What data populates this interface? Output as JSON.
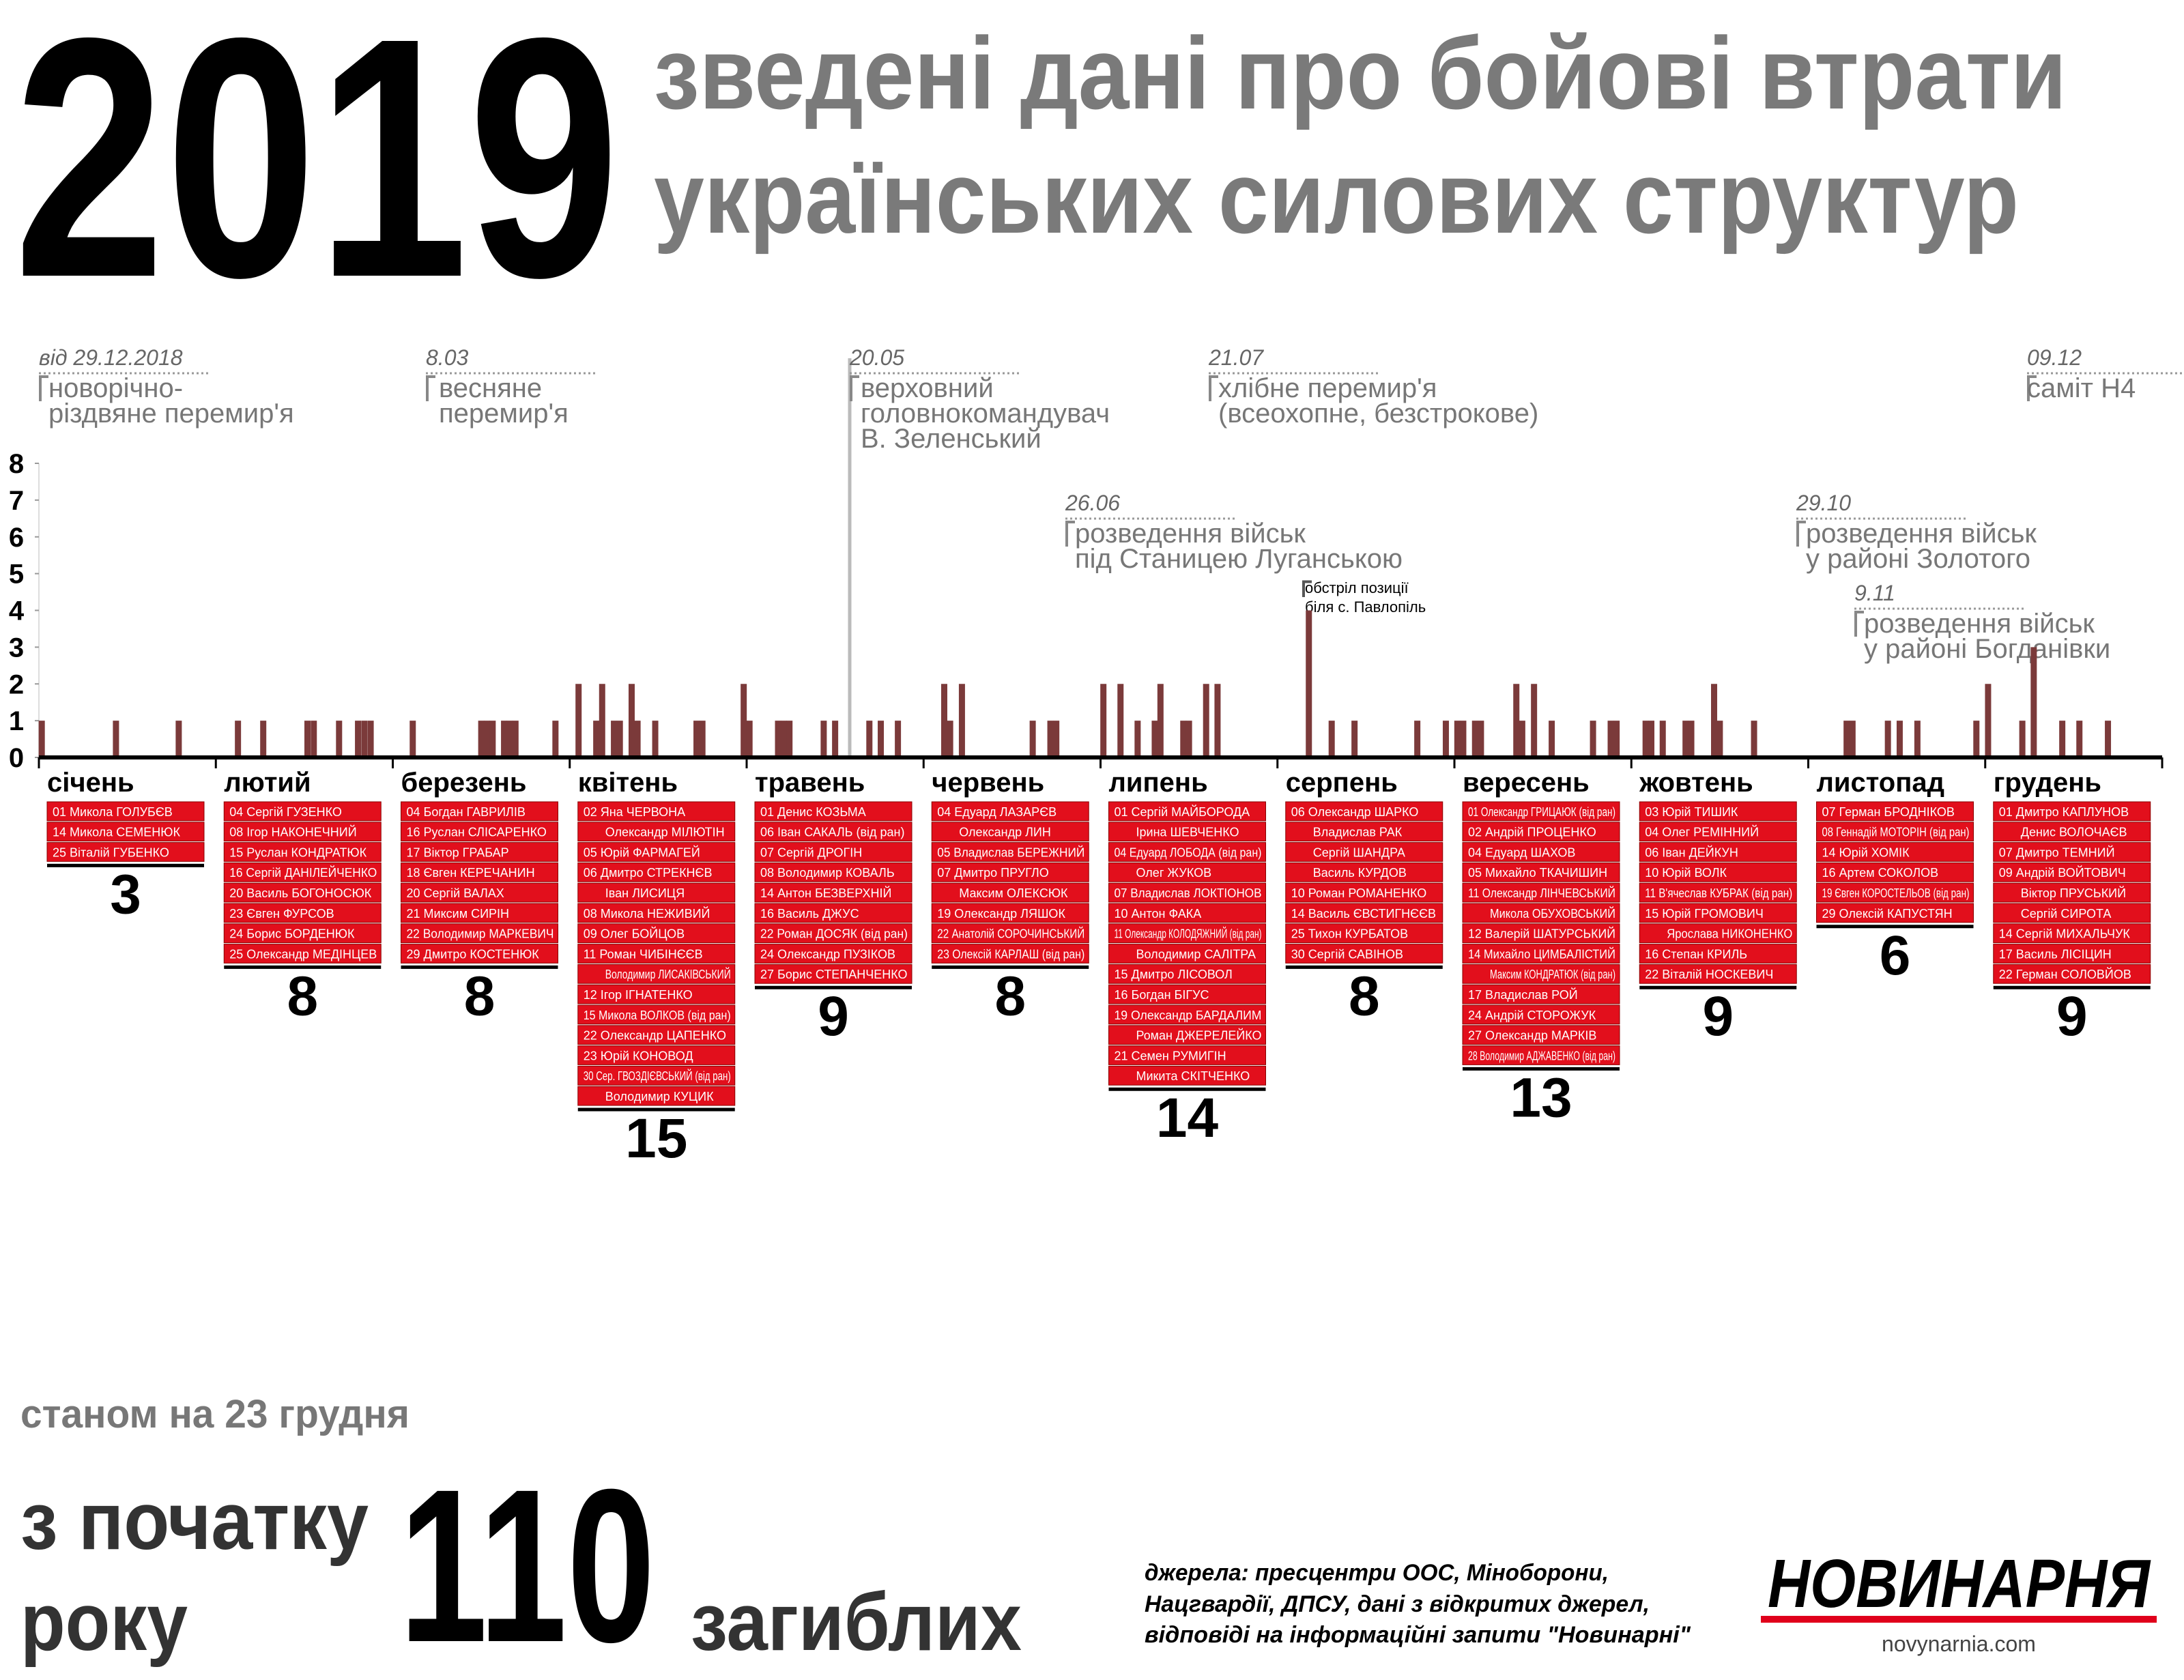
{
  "header": {
    "year": "2019",
    "title_lines": [
      "зведені дані про бойові втрати",
      "українських силових структур"
    ]
  },
  "chart_data": {
    "type": "bar",
    "ylim": [
      0,
      8
    ],
    "yticks": [
      0,
      1,
      2,
      3,
      4,
      5,
      6,
      7,
      8
    ],
    "color": "#7b3a3a",
    "months": [
      {
        "name": "січень",
        "days": [
          1,
          14,
          25
        ],
        "values": [
          1,
          1,
          1
        ],
        "total": 3,
        "names": [
          "01 Микола ГОЛУБЄВ",
          "14 Микола СЕМЕНЮК",
          "25 Віталій ГУБЕНКО"
        ]
      },
      {
        "name": "лютий",
        "days": [
          4,
          8,
          15,
          16,
          20,
          23,
          24,
          25
        ],
        "values": [
          1,
          1,
          1,
          1,
          1,
          1,
          1,
          1
        ],
        "total": 8,
        "names": [
          "04 Сергій ГУЗЕНКО",
          "08 Ігор НАКОНЕЧНИЙ",
          "15 Руслан КОНДРАТЮК",
          "16 Сергій ДАНІЛЕЙЧЕНКО",
          "20 Василь БОГОНОСЮК",
          "23 Євген ФУРСОВ",
          "24 Борис БОРДЕНЮК",
          "25 Олександр МЕДІНЦЕВ"
        ]
      },
      {
        "name": "березень",
        "days": [
          4,
          16,
          17,
          18,
          20,
          21,
          22,
          29
        ],
        "values": [
          1,
          1,
          1,
          1,
          1,
          1,
          1,
          1
        ],
        "total": 8,
        "names": [
          "04 Богдан ГАВРИЛІВ",
          "16 Руслан СЛІСАРЕНКО",
          "17 Віктор ГРАБАР",
          "18 Євген КЕРЕЧАНИН",
          "20 Сергій ВАЛАХ",
          "21 Миксим СИРІН",
          "22 Володимир МАРКЕВИЧ",
          "29 Дмитро КОСТЕНЮК"
        ]
      },
      {
        "name": "квітень",
        "days": [
          2,
          5,
          6,
          8,
          9,
          11,
          12,
          15,
          22,
          23,
          30
        ],
        "values": [
          2,
          1,
          2,
          1,
          1,
          2,
          1,
          1,
          1,
          1,
          2
        ],
        "total": 15,
        "names": [
          "02 Яна ЧЕРВОНА",
          "Олександр МІЛЮТІН",
          "05 Юрій ФАРМАГЕЙ",
          "06 Дмитро СТРЕКНЄВ",
          "Іван ЛИСИЦЯ",
          "08 Микола НЕЖИВИЙ",
          "09 Олег БОЙЦОВ",
          "11 Роман ЧИБІНЄЄВ",
          "Володимир ЛИСАКІВСЬКИЙ",
          "12 Ігор ІГНАТЕНКО",
          "15 Микола ВОЛКОВ (від ран)",
          "22 Олександр ЦАПЕНКО",
          "23 Юрій КОНОВОД",
          "30 Сер. ГВОЗДІЄВСЬКИЙ (від ран)",
          "Володимир КУЦИК"
        ]
      },
      {
        "name": "травень",
        "days": [
          1,
          6,
          7,
          8,
          14,
          16,
          22,
          24,
          27
        ],
        "values": [
          1,
          1,
          1,
          1,
          1,
          1,
          1,
          1,
          1
        ],
        "total": 9,
        "names": [
          "01 Денис КОЗЬМА",
          "06 Іван САКАЛЬ (від ран)",
          "07 Сергій ДРОГІН",
          "08 Володимир КОВАЛЬ",
          "14 Антон БЕЗВЕРХНІЙ",
          "16 Василь ДЖУС",
          "22 Роман ДОСЯК (від ран)",
          "24 Олександр ПУЗІКОВ",
          "27 Борис СТЕПАНЧЕНКО"
        ]
      },
      {
        "name": "червень",
        "days": [
          4,
          5,
          7,
          19,
          22,
          23
        ],
        "values": [
          2,
          1,
          2,
          1,
          1,
          1
        ],
        "total": 8,
        "names": [
          "04 Едуард ЛАЗАРЄВ",
          "Олександр ЛИН",
          "05 Владислав БЕРЕЖНИЙ",
          "07 Дмитро ПРУГЛО",
          "Максим ОЛЕКСЮК",
          "19 Олександр ЛЯШОК",
          "22 Анатолій СОРОЧИНСЬКИЙ",
          "23 Олексій КАРЛАШ (від ран)"
        ]
      },
      {
        "name": "липень",
        "days": [
          1,
          4,
          7,
          10,
          11,
          15,
          16,
          19,
          21
        ],
        "values": [
          2,
          2,
          1,
          1,
          2,
          1,
          1,
          2,
          2
        ],
        "total": 14,
        "names": [
          "01 Сергій МАЙБОРОДА",
          "Ірина ШЕВЧЕНКО",
          "04 Едуард ЛОБОДА (від ран)",
          "Олег ЖУКОВ",
          "07 Владислав ЛОКТІОНОВ",
          "10 Антон ФАКА",
          "11 Олександр КОЛОДЯЖНИЙ (від ран)",
          "Володимир САЛІТРА",
          "15 Дмитро ЛІСОВОЛ",
          "16 Богдан БІГУС",
          "19 Олександр БАРДАЛИМ",
          "Роман ДЖЕРЕЛЕЙКО",
          "21 Семен РУМИГІН",
          "Микита СКІТЧЕНКО"
        ]
      },
      {
        "name": "серпень",
        "days": [
          6,
          10,
          14,
          25,
          30
        ],
        "values": [
          4,
          1,
          1,
          1,
          1
        ],
        "total": 8,
        "names": [
          "06 Олександр ШАРКО",
          "Владислав РАК",
          "Сергій ШАНДРА",
          "Василь КУРДОВ",
          "10 Роман РОМАНЕНКО",
          "14 Василь ЄВСТИГНЄЄВ",
          "25 Тихон КУРБАТОВ",
          "30 Сергій САВІНОВ"
        ]
      },
      {
        "name": "вересень",
        "days": [
          1,
          2,
          4,
          5,
          11,
          12,
          14,
          17,
          24,
          27,
          28
        ],
        "values": [
          1,
          1,
          1,
          1,
          2,
          1,
          2,
          1,
          1,
          1,
          1
        ],
        "total": 13,
        "names": [
          "01 Олександр ГРИЦАЮК (від ран)",
          "02 Андрій ПРОЦЕНКО",
          "04 Едуард ШАХОВ",
          "05 Михайло ТКАЧИШИН",
          "11 Олександр ЛІНЧЕВСЬКИЙ",
          "Микола ОБУХОВСЬКИЙ",
          "12 Валерій ШАТУРСЬКИЙ",
          "14 Михайло ЦИМБАЛІСТИЙ",
          "Максим КОНДРАТЮК (від ран)",
          "17 Владислав РОЙ",
          "24 Андрій СТОРОЖУК",
          "27 Олександр МАРКІВ",
          "28 Володимир АДЖАВЕНКО (від ран)"
        ]
      },
      {
        "name": "жовтень",
        "days": [
          3,
          4,
          6,
          10,
          11,
          15,
          16,
          22
        ],
        "values": [
          1,
          1,
          1,
          1,
          1,
          2,
          1,
          1
        ],
        "total": 9,
        "names": [
          "03 Юрій ТИШИК",
          "04 Олег РЕМІННИЙ",
          "06 Іван ДЕЙКУН",
          "10 Юрій ВОЛК",
          "11 В'ячеслав КУБРАК (від ран)",
          "15 Юрій ГРОМОВИЧ",
          "Ярослава НИКОНЕНКО",
          "16 Степан КРИЛЬ",
          "22 Віталій НОСКЕВИЧ"
        ]
      },
      {
        "name": "листопад",
        "days": [
          7,
          8,
          14,
          16,
          19,
          29
        ],
        "values": [
          1,
          1,
          1,
          1,
          1,
          1
        ],
        "total": 6,
        "names": [
          "07 Герман БРОДНІКОВ",
          "08 Геннадій МОТОРІН (від ран)",
          "14 Юрій ХОМІК",
          "16 Артем СОКОЛОВ",
          "19 Євген КОРОСТЕЛЬОВ (від ран)",
          "29 Олексій КАПУСТЯН"
        ]
      },
      {
        "name": "грудень",
        "days": [
          1,
          7,
          9,
          14,
          17,
          22
        ],
        "values": [
          2,
          1,
          3,
          1,
          1,
          1
        ],
        "total": 9,
        "names": [
          "01 Дмитро КАПЛУНОВ",
          "Денис ВОЛОЧАЄВ",
          "07 Дмитро ТЕМНИЙ",
          "09 Андрій ВОЙТОВИЧ",
          "Віктор ПРУСЬКИЙ",
          "Сергій СИРОТА",
          "14 Сергій МИХАЛЬЧУК",
          "17 Василь ЛІСІЦИН",
          "22 Герман СОЛОВЙОВ"
        ]
      }
    ]
  },
  "events": [
    {
      "date": "від 29.12.2018",
      "lines": [
        "новорічно-",
        "різдвяне перемир'я"
      ]
    },
    {
      "date": "8.03",
      "lines": [
        "весняне",
        "перемир'я"
      ]
    },
    {
      "date": "20.05",
      "lines": [
        "верховний",
        "головнокомандувач",
        "В. Зеленський"
      ]
    },
    {
      "date": "21.07",
      "lines": [
        "хлібне перемир'я",
        "(всеохопне, безстрокове)"
      ]
    },
    {
      "date": "26.06",
      "lines": [
        "розведення військ",
        "під Станицею Луганською"
      ]
    },
    {
      "lines": [
        "обстріл позиції",
        "біля с. Павлопіль"
      ]
    },
    {
      "date": "29.10",
      "lines": [
        "розведення військ",
        "у районі Золотого"
      ]
    },
    {
      "date": "9.11",
      "lines": [
        "розведення військ",
        "у районі Богданівки"
      ]
    },
    {
      "date": "09.12",
      "lines": [
        "саміт Н4"
      ]
    }
  ],
  "footer": {
    "as_of": "станом на 23 грудня",
    "since_lines": [
      "з початку",
      "року"
    ],
    "total": "110",
    "total_label": "загиблих",
    "sources": [
      "джерела: пресцентри ООС, Міноборони,",
      "Нацгвардії, ДПСУ, дані з відкритих джерел,",
      "відповіді на інформаційні запити \"Новинарні\""
    ],
    "logo": "НОВИНАРНЯ",
    "logo_url": "novynarnia.com"
  }
}
